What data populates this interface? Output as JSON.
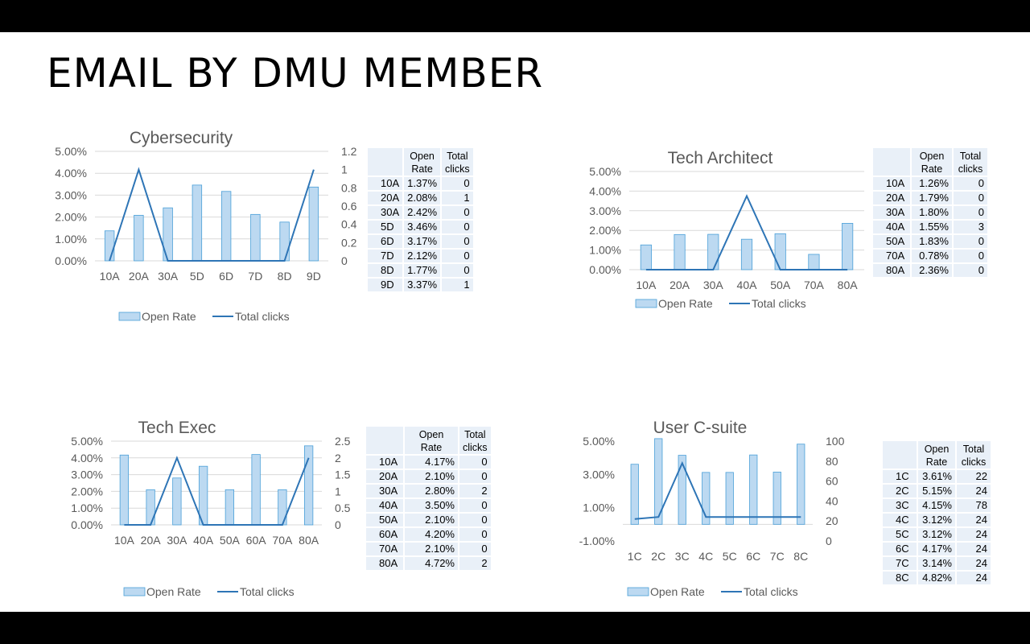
{
  "slide": {
    "title": "EMAIL BY DMU MEMBER"
  },
  "legend": {
    "open_rate": "Open Rate",
    "total_clicks": "Total clicks"
  },
  "colors": {
    "bar_fill": "#bcd9f1",
    "bar_stroke": "#4a9fd8",
    "line": "#2e75b6",
    "grid": "#d9d9d9",
    "table_bg": "#e9f0f8"
  },
  "chart_data": [
    {
      "type": "bar",
      "title": "Cybersecurity",
      "categories": [
        "10A",
        "20A",
        "30A",
        "5D",
        "6D",
        "7D",
        "8D",
        "9D"
      ],
      "series": [
        {
          "name": "Open Rate",
          "type": "bar",
          "axis": "left",
          "values": [
            1.37,
            2.08,
            2.42,
            3.46,
            3.17,
            2.12,
            1.77,
            3.37
          ]
        },
        {
          "name": "Total clicks",
          "type": "line",
          "axis": "right",
          "values": [
            0,
            1,
            0,
            0,
            0,
            0,
            0,
            1
          ]
        }
      ],
      "y_left": {
        "min": 0,
        "max": 5,
        "ticks": [
          "0.00%",
          "1.00%",
          "2.00%",
          "3.00%",
          "4.00%",
          "5.00%"
        ]
      },
      "y_right": {
        "min": 0,
        "max": 1.2,
        "ticks": [
          "0",
          "0.2",
          "0.4",
          "0.6",
          "0.8",
          "1",
          "1.2"
        ]
      },
      "legend_position": "bottom",
      "grid": true,
      "table": {
        "headers": [
          "",
          "Open Rate",
          "Total clicks"
        ],
        "rows": [
          [
            "10A",
            "1.37%",
            "0"
          ],
          [
            "20A",
            "2.08%",
            "1"
          ],
          [
            "30A",
            "2.42%",
            "0"
          ],
          [
            "5D",
            "3.46%",
            "0"
          ],
          [
            "6D",
            "3.17%",
            "0"
          ],
          [
            "7D",
            "2.12%",
            "0"
          ],
          [
            "8D",
            "1.77%",
            "0"
          ],
          [
            "9D",
            "3.37%",
            "1"
          ]
        ]
      }
    },
    {
      "type": "bar",
      "title": "Tech Architect",
      "categories": [
        "10A",
        "20A",
        "30A",
        "40A",
        "50A",
        "70A",
        "80A"
      ],
      "series": [
        {
          "name": "Open Rate",
          "type": "bar",
          "axis": "left",
          "values": [
            1.26,
            1.79,
            1.8,
            1.55,
            1.83,
            0.78,
            2.36
          ]
        },
        {
          "name": "Total clicks",
          "type": "line",
          "axis": "right",
          "values": [
            0,
            0,
            0,
            3,
            0,
            0,
            0
          ]
        }
      ],
      "y_left": {
        "min": 0,
        "max": 5,
        "ticks": [
          "0.00%",
          "1.00%",
          "2.00%",
          "3.00%",
          "4.00%",
          "5.00%"
        ]
      },
      "y_right": {
        "min": 0,
        "max": 4,
        "ticks": [
          "0",
          "1",
          "2",
          "3",
          "4"
        ]
      },
      "legend_position": "bottom",
      "grid": true,
      "table": {
        "headers": [
          "",
          "Open Rate",
          "Total clicks"
        ],
        "rows": [
          [
            "10A",
            "1.26%",
            "0"
          ],
          [
            "20A",
            "1.79%",
            "0"
          ],
          [
            "30A",
            "1.80%",
            "0"
          ],
          [
            "40A",
            "1.55%",
            "3"
          ],
          [
            "50A",
            "1.83%",
            "0"
          ],
          [
            "70A",
            "0.78%",
            "0"
          ],
          [
            "80A",
            "2.36%",
            "0"
          ]
        ]
      }
    },
    {
      "type": "bar",
      "title": "Tech Exec",
      "categories": [
        "10A",
        "20A",
        "30A",
        "40A",
        "50A",
        "60A",
        "70A",
        "80A"
      ],
      "series": [
        {
          "name": "Open Rate",
          "type": "bar",
          "axis": "left",
          "values": [
            4.17,
            2.1,
            2.8,
            3.5,
            2.1,
            4.2,
            2.1,
            4.72
          ]
        },
        {
          "name": "Total clicks",
          "type": "line",
          "axis": "right",
          "values": [
            0,
            0,
            2,
            0,
            0,
            0,
            0,
            2
          ]
        }
      ],
      "y_left": {
        "min": 0,
        "max": 5,
        "ticks": [
          "0.00%",
          "1.00%",
          "2.00%",
          "3.00%",
          "4.00%",
          "5.00%"
        ]
      },
      "y_right": {
        "min": 0,
        "max": 2.5,
        "ticks": [
          "0",
          "0.5",
          "1",
          "1.5",
          "2",
          "2.5"
        ]
      },
      "legend_position": "bottom",
      "grid": true,
      "table": {
        "headers": [
          "",
          "Open Rate",
          "Total clicks"
        ],
        "rows": [
          [
            "10A",
            "4.17%",
            "0"
          ],
          [
            "20A",
            "2.10%",
            "0"
          ],
          [
            "30A",
            "2.80%",
            "2"
          ],
          [
            "40A",
            "3.50%",
            "0"
          ],
          [
            "50A",
            "2.10%",
            "0"
          ],
          [
            "60A",
            "4.20%",
            "0"
          ],
          [
            "70A",
            "2.10%",
            "0"
          ],
          [
            "80A",
            "4.72%",
            "2"
          ]
        ]
      }
    },
    {
      "type": "bar",
      "title": "User C-suite",
      "categories": [
        "1C",
        "2C",
        "3C",
        "4C",
        "5C",
        "6C",
        "7C",
        "8C"
      ],
      "series": [
        {
          "name": "Open Rate",
          "type": "bar",
          "axis": "left",
          "values": [
            3.61,
            5.15,
            4.15,
            3.12,
            3.12,
            4.17,
            3.14,
            4.82
          ]
        },
        {
          "name": "Total clicks",
          "type": "line",
          "axis": "right",
          "values": [
            22,
            24,
            78,
            24,
            24,
            24,
            24,
            24
          ]
        }
      ],
      "y_left": {
        "min": -1,
        "max": 5,
        "ticks": [
          "-1.00%",
          "1.00%",
          "3.00%",
          "5.00%"
        ]
      },
      "y_right": {
        "min": 0,
        "max": 100,
        "ticks": [
          "0",
          "20",
          "40",
          "60",
          "80",
          "100"
        ]
      },
      "legend_position": "bottom",
      "grid": false,
      "table": {
        "headers": [
          "",
          "Open Rate",
          "Total clicks"
        ],
        "rows": [
          [
            "1C",
            "3.61%",
            "22"
          ],
          [
            "2C",
            "5.15%",
            "24"
          ],
          [
            "3C",
            "4.15%",
            "78"
          ],
          [
            "4C",
            "3.12%",
            "24"
          ],
          [
            "5C",
            "3.12%",
            "24"
          ],
          [
            "6C",
            "4.17%",
            "24"
          ],
          [
            "7C",
            "3.14%",
            "24"
          ],
          [
            "8C",
            "4.82%",
            "24"
          ]
        ]
      }
    }
  ]
}
